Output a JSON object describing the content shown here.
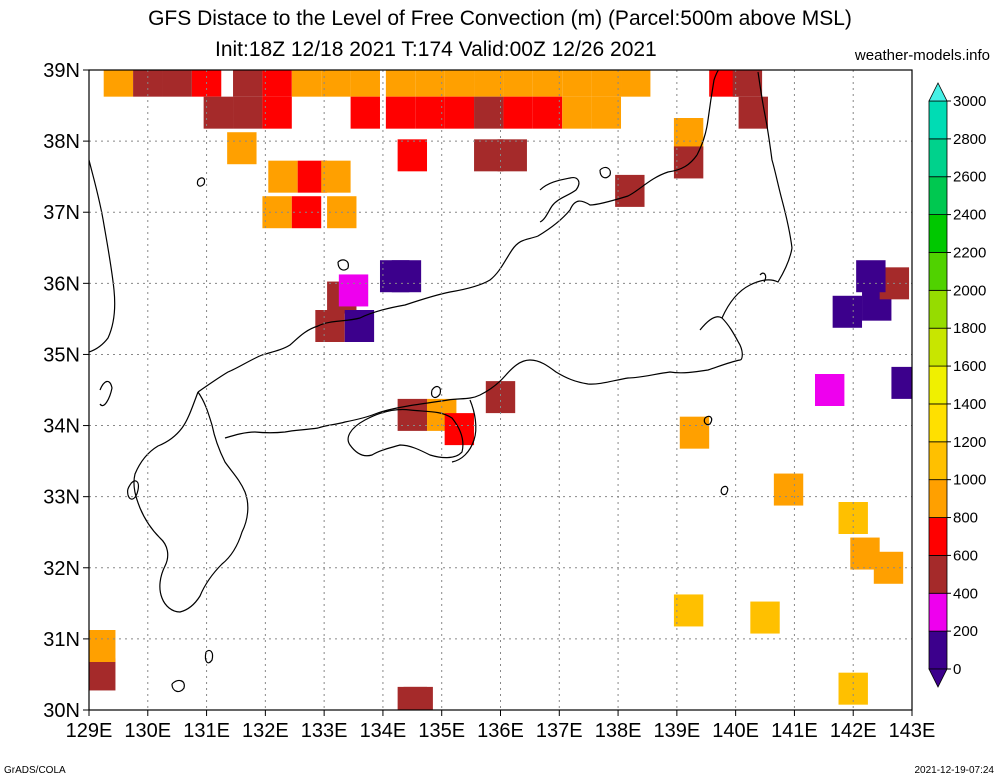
{
  "header": {
    "title": "GFS Distace to the Level of Free Convection (m) (Parcel:500m above MSL)",
    "subtitle": "Init:18Z 12/18 2021 T:174 Valid:00Z 12/26 2021",
    "site": "weather-models.info"
  },
  "footer": {
    "left": "GrADS/COLA",
    "right": "2021-12-19-07:24"
  },
  "chart_data": {
    "type": "heatmap",
    "title": "GFS Distace to the Level of Free Convection (m) (Parcel:500m above MSL)",
    "subtitle": "Init:18Z 12/18 2021 T:174 Valid:00Z 12/26 2021",
    "xlim": [
      129,
      143
    ],
    "ylim": [
      30,
      39
    ],
    "x_ticks": [
      129,
      130,
      131,
      132,
      133,
      134,
      135,
      136,
      137,
      138,
      139,
      140,
      141,
      142,
      143
    ],
    "x_tick_labels": [
      "129E",
      "130E",
      "131E",
      "132E",
      "133E",
      "134E",
      "135E",
      "136E",
      "137E",
      "138E",
      "139E",
      "140E",
      "141E",
      "142E",
      "143E"
    ],
    "y_ticks": [
      30,
      31,
      32,
      33,
      34,
      35,
      36,
      37,
      38,
      39
    ],
    "y_tick_labels": [
      "30N",
      "31N",
      "32N",
      "33N",
      "34N",
      "35N",
      "36N",
      "37N",
      "38N",
      "39N"
    ],
    "grid": true,
    "colorbar": {
      "levels": [
        0,
        200,
        400,
        600,
        800,
        1000,
        1200,
        1400,
        1600,
        1800,
        2000,
        2200,
        2400,
        2600,
        2800,
        3000
      ],
      "labels": [
        "0",
        "200",
        "400",
        "600",
        "800",
        "1000",
        "1200",
        "1400",
        "1600",
        "1800",
        "2000",
        "2200",
        "2400",
        "2600",
        "2800",
        "3000"
      ],
      "colors": [
        "#3c008c",
        "#ee00ee",
        "#a52a2a",
        "#ff0000",
        "#ffa000",
        "#ffc000",
        "#ffe000",
        "#f0f000",
        "#c8e600",
        "#96dc00",
        "#50d200",
        "#00c800",
        "#00c850",
        "#00d28c",
        "#00dcb4",
        "#00e6d2"
      ],
      "low_color": "#3c008c",
      "high_color": "#46f0e6"
    },
    "points": [
      {
        "lon": 129.5,
        "lat": 38.85,
        "value": 900
      },
      {
        "lon": 130.0,
        "lat": 38.85,
        "value": 500
      },
      {
        "lon": 130.5,
        "lat": 38.85,
        "value": 500
      },
      {
        "lon": 131.0,
        "lat": 38.85,
        "value": 700
      },
      {
        "lon": 131.7,
        "lat": 38.85,
        "value": 450
      },
      {
        "lon": 132.2,
        "lat": 38.85,
        "value": 650
      },
      {
        "lon": 132.7,
        "lat": 38.85,
        "value": 800
      },
      {
        "lon": 133.2,
        "lat": 38.85,
        "value": 850
      },
      {
        "lon": 133.7,
        "lat": 38.85,
        "value": 900
      },
      {
        "lon": 134.3,
        "lat": 38.85,
        "value": 900
      },
      {
        "lon": 134.8,
        "lat": 38.85,
        "value": 850
      },
      {
        "lon": 135.3,
        "lat": 38.85,
        "value": 900
      },
      {
        "lon": 135.8,
        "lat": 38.85,
        "value": 900
      },
      {
        "lon": 136.3,
        "lat": 38.85,
        "value": 850
      },
      {
        "lon": 136.8,
        "lat": 38.85,
        "value": 850
      },
      {
        "lon": 137.3,
        "lat": 38.85,
        "value": 900
      },
      {
        "lon": 137.8,
        "lat": 38.85,
        "value": 850
      },
      {
        "lon": 138.3,
        "lat": 38.85,
        "value": 900
      },
      {
        "lon": 139.8,
        "lat": 38.85,
        "value": 700
      },
      {
        "lon": 140.2,
        "lat": 38.85,
        "value": 500
      },
      {
        "lon": 131.2,
        "lat": 38.4,
        "value": 550
      },
      {
        "lon": 131.7,
        "lat": 38.4,
        "value": 450
      },
      {
        "lon": 132.2,
        "lat": 38.4,
        "value": 700
      },
      {
        "lon": 133.7,
        "lat": 38.4,
        "value": 650
      },
      {
        "lon": 134.3,
        "lat": 38.4,
        "value": 750
      },
      {
        "lon": 134.8,
        "lat": 38.4,
        "value": 650
      },
      {
        "lon": 135.3,
        "lat": 38.4,
        "value": 700
      },
      {
        "lon": 135.8,
        "lat": 38.4,
        "value": 550
      },
      {
        "lon": 136.3,
        "lat": 38.4,
        "value": 650
      },
      {
        "lon": 136.8,
        "lat": 38.4,
        "value": 700
      },
      {
        "lon": 137.3,
        "lat": 38.4,
        "value": 800
      },
      {
        "lon": 137.8,
        "lat": 38.4,
        "value": 850
      },
      {
        "lon": 140.3,
        "lat": 38.4,
        "value": 500
      },
      {
        "lon": 131.6,
        "lat": 37.9,
        "value": 800
      },
      {
        "lon": 132.3,
        "lat": 37.5,
        "value": 800
      },
      {
        "lon": 132.8,
        "lat": 37.5,
        "value": 650
      },
      {
        "lon": 133.2,
        "lat": 37.5,
        "value": 850
      },
      {
        "lon": 133.3,
        "lat": 37.0,
        "value": 850
      },
      {
        "lon": 132.2,
        "lat": 37.0,
        "value": 900
      },
      {
        "lon": 132.7,
        "lat": 37.0,
        "value": 700
      },
      {
        "lon": 134.5,
        "lat": 37.8,
        "value": 600
      },
      {
        "lon": 135.8,
        "lat": 37.8,
        "value": 450
      },
      {
        "lon": 136.2,
        "lat": 37.8,
        "value": 420
      },
      {
        "lon": 138.2,
        "lat": 37.3,
        "value": 450
      },
      {
        "lon": 139.2,
        "lat": 38.1,
        "value": 900
      },
      {
        "lon": 139.2,
        "lat": 37.7,
        "value": 500
      },
      {
        "lon": 133.3,
        "lat": 35.8,
        "value": 400
      },
      {
        "lon": 133.1,
        "lat": 35.4,
        "value": 450
      },
      {
        "lon": 133.6,
        "lat": 35.4,
        "value": 150
      },
      {
        "lon": 133.5,
        "lat": 35.9,
        "value": 300
      },
      {
        "lon": 134.2,
        "lat": 36.1,
        "value": 150
      },
      {
        "lon": 134.4,
        "lat": 36.1,
        "value": 50
      },
      {
        "lon": 134.5,
        "lat": 34.15,
        "value": 500
      },
      {
        "lon": 135.0,
        "lat": 34.15,
        "value": 800
      },
      {
        "lon": 135.3,
        "lat": 33.95,
        "value": 600
      },
      {
        "lon": 136.0,
        "lat": 34.4,
        "value": 450
      },
      {
        "lon": 139.3,
        "lat": 33.9,
        "value": 950
      },
      {
        "lon": 141.9,
        "lat": 35.6,
        "value": 50
      },
      {
        "lon": 142.4,
        "lat": 35.7,
        "value": 50
      },
      {
        "lon": 142.7,
        "lat": 36.0,
        "value": 400
      },
      {
        "lon": 142.3,
        "lat": 36.1,
        "value": 150
      },
      {
        "lon": 141.6,
        "lat": 34.5,
        "value": 350
      },
      {
        "lon": 142.9,
        "lat": 34.6,
        "value": 50
      },
      {
        "lon": 140.9,
        "lat": 33.1,
        "value": 950
      },
      {
        "lon": 142.2,
        "lat": 32.2,
        "value": 900
      },
      {
        "lon": 142.6,
        "lat": 32.0,
        "value": 900
      },
      {
        "lon": 142.0,
        "lat": 32.7,
        "value": 1000
      },
      {
        "lon": 139.2,
        "lat": 31.4,
        "value": 1000
      },
      {
        "lon": 140.5,
        "lat": 31.3,
        "value": 1000
      },
      {
        "lon": 129.2,
        "lat": 30.5,
        "value": 550
      },
      {
        "lon": 129.2,
        "lat": 30.9,
        "value": 800
      },
      {
        "lon": 134.6,
        "lat": 30.1,
        "value": 550
      },
      {
        "lon": 134.5,
        "lat": 30.1,
        "value": 500
      },
      {
        "lon": 142.0,
        "lat": 30.3,
        "value": 1000
      }
    ]
  }
}
